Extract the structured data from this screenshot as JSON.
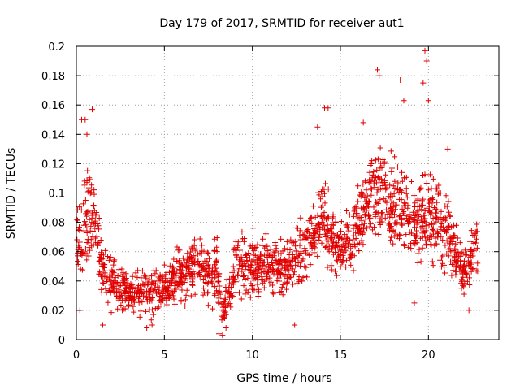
{
  "chart_data": {
    "type": "scatter",
    "title": "Day 179 of 2017, SRMTID for receiver aut1",
    "xlabel": "GPS time / hours",
    "ylabel": "SRMTID / TECUs",
    "xlim": [
      0,
      24
    ],
    "ylim": [
      0,
      0.2
    ],
    "xticks": [
      0,
      5,
      10,
      15,
      20
    ],
    "xtick_labels": [
      "0",
      "5",
      "10",
      "15",
      "20"
    ],
    "yticks": [
      0,
      0.02,
      0.04,
      0.06,
      0.08,
      0.1,
      0.12,
      0.14,
      0.16,
      0.18,
      0.2
    ],
    "ytick_labels": [
      "0",
      "0.02",
      "0.04",
      "0.06",
      "0.08",
      "0.1",
      "0.12",
      "0.14",
      "0.16",
      "0.18",
      "0.2"
    ],
    "grid": true,
    "marker": "+",
    "color": "#e00000",
    "series": [
      {
        "name": "SRMTID",
        "profile": [
          {
            "x": 0.0,
            "center": 0.062,
            "spread": 0.03
          },
          {
            "x": 0.5,
            "center": 0.075,
            "spread": 0.045
          },
          {
            "x": 1.0,
            "center": 0.085,
            "spread": 0.05
          },
          {
            "x": 1.5,
            "center": 0.045,
            "spread": 0.025
          },
          {
            "x": 2.0,
            "center": 0.04,
            "spread": 0.025
          },
          {
            "x": 3.0,
            "center": 0.032,
            "spread": 0.02
          },
          {
            "x": 4.0,
            "center": 0.03,
            "spread": 0.02
          },
          {
            "x": 5.0,
            "center": 0.038,
            "spread": 0.022
          },
          {
            "x": 6.0,
            "center": 0.045,
            "spread": 0.025
          },
          {
            "x": 7.0,
            "center": 0.048,
            "spread": 0.025
          },
          {
            "x": 8.0,
            "center": 0.045,
            "spread": 0.03
          },
          {
            "x": 8.3,
            "center": 0.02,
            "spread": 0.015
          },
          {
            "x": 9.0,
            "center": 0.05,
            "spread": 0.03
          },
          {
            "x": 10.0,
            "center": 0.052,
            "spread": 0.03
          },
          {
            "x": 11.0,
            "center": 0.05,
            "spread": 0.025
          },
          {
            "x": 12.0,
            "center": 0.05,
            "spread": 0.025
          },
          {
            "x": 13.0,
            "center": 0.06,
            "spread": 0.03
          },
          {
            "x": 14.0,
            "center": 0.085,
            "spread": 0.04
          },
          {
            "x": 14.5,
            "center": 0.07,
            "spread": 0.03
          },
          {
            "x": 15.0,
            "center": 0.06,
            "spread": 0.025
          },
          {
            "x": 16.0,
            "center": 0.075,
            "spread": 0.035
          },
          {
            "x": 17.0,
            "center": 0.1,
            "spread": 0.045
          },
          {
            "x": 18.0,
            "center": 0.095,
            "spread": 0.045
          },
          {
            "x": 19.0,
            "center": 0.08,
            "spread": 0.04
          },
          {
            "x": 20.0,
            "center": 0.085,
            "spread": 0.05
          },
          {
            "x": 21.0,
            "center": 0.075,
            "spread": 0.035
          },
          {
            "x": 22.0,
            "center": 0.045,
            "spread": 0.02
          },
          {
            "x": 22.8,
            "center": 0.065,
            "spread": 0.025
          }
        ],
        "peaks": [
          [
            0.3,
            0.15
          ],
          [
            0.5,
            0.15
          ],
          [
            0.9,
            0.157
          ],
          [
            0.6,
            0.14
          ],
          [
            13.7,
            0.145
          ],
          [
            14.1,
            0.158
          ],
          [
            14.3,
            0.158
          ],
          [
            16.3,
            0.148
          ],
          [
            17.1,
            0.184
          ],
          [
            17.2,
            0.18
          ],
          [
            18.4,
            0.177
          ],
          [
            18.6,
            0.163
          ],
          [
            19.8,
            0.197
          ],
          [
            19.9,
            0.19
          ],
          [
            19.7,
            0.175
          ],
          [
            20.0,
            0.163
          ],
          [
            21.1,
            0.13
          ]
        ],
        "lows": [
          [
            0.2,
            0.02
          ],
          [
            1.5,
            0.01
          ],
          [
            4.0,
            0.008
          ],
          [
            4.3,
            0.01
          ],
          [
            8.1,
            0.004
          ],
          [
            8.3,
            0.003
          ],
          [
            8.5,
            0.008
          ],
          [
            12.4,
            0.01
          ],
          [
            19.2,
            0.025
          ],
          [
            22.3,
            0.02
          ]
        ]
      }
    ]
  }
}
